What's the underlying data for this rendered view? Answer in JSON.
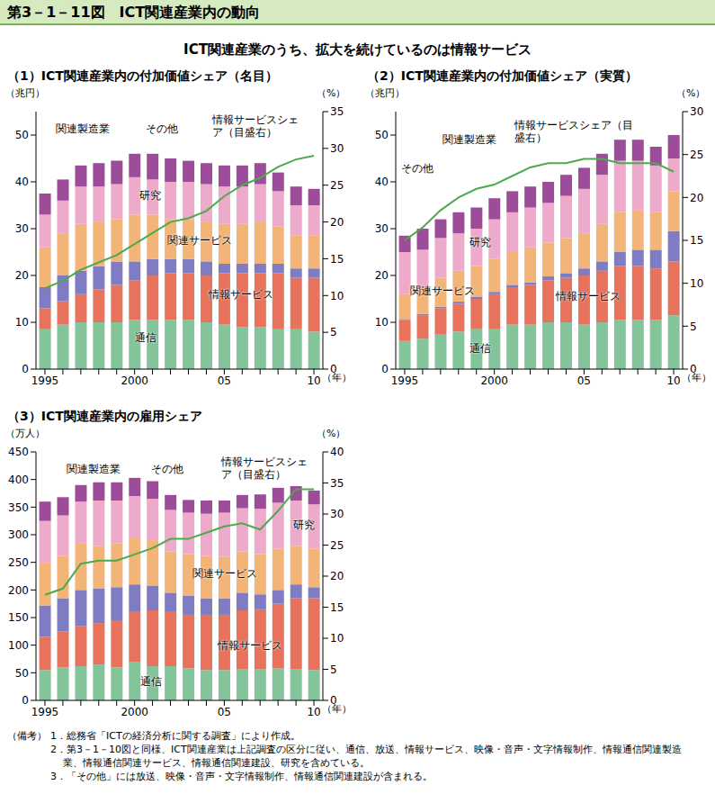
{
  "header": "第3－1－11図　ICT関連産業内の動向",
  "subtitle": "ICT関連産業のうち、拡大を続けているのは情報サービス",
  "chart_data": [
    {
      "type": "bar",
      "stacked": true,
      "title": "（1）ICT関連産業内の付加価値シェア（名目）",
      "y_label": "（兆円）",
      "y2_label": "（%）",
      "x_label": "（年）",
      "categories": [
        "1995",
        null,
        null,
        null,
        null,
        "2000",
        null,
        null,
        null,
        null,
        "05",
        null,
        null,
        null,
        null,
        "10"
      ],
      "ylim": [
        0,
        55
      ],
      "yticks": [
        0,
        10,
        20,
        30,
        40,
        50
      ],
      "y2lim": [
        0,
        35
      ],
      "y2ticks": [
        0,
        5,
        10,
        15,
        20,
        25,
        30,
        35
      ],
      "series": [
        {
          "name": "通信",
          "color": "#84c49a",
          "values": [
            8.5,
            9.5,
            10,
            10,
            10,
            10.5,
            10.5,
            10.5,
            10.5,
            10,
            9.5,
            9,
            9,
            8.5,
            8.5,
            8
          ]
        },
        {
          "name": "情報サービス",
          "color": "#e8735c",
          "values": [
            4.5,
            5,
            6,
            7,
            8,
            8.5,
            9.5,
            10,
            10,
            10,
            11,
            11.5,
            11.5,
            12,
            11,
            11.5
          ]
        },
        {
          "name": "関連製造業",
          "color": "#7f7cc4",
          "values": [
            4.5,
            5.5,
            5,
            5,
            5,
            4,
            3.5,
            3,
            3,
            3,
            2,
            2,
            2,
            2,
            2,
            2
          ]
        },
        {
          "name": "関連サービス",
          "color": "#f2b577",
          "values": [
            8.5,
            9,
            10,
            9.5,
            9,
            10,
            9.5,
            8.5,
            8.5,
            8.5,
            8.5,
            8.5,
            9,
            8,
            7,
            7
          ]
        },
        {
          "name": "研究",
          "color": "#eeaacb",
          "values": [
            7,
            7,
            8,
            7.5,
            7.5,
            8,
            7.5,
            8,
            8,
            8,
            8,
            8,
            8,
            7.5,
            6.5,
            6.5
          ]
        },
        {
          "name": "その他",
          "color": "#9c4c98",
          "values": [
            4.5,
            4.5,
            4.5,
            5,
            5,
            5,
            5.5,
            5,
            4.5,
            4.5,
            4.5,
            4.5,
            4.5,
            4,
            4,
            3.5
          ]
        },
        {
          "name": "情報サービスシェア（目盛右）",
          "color": "#4caa4c",
          "type": "line",
          "axis": "y2",
          "values": [
            11,
            12,
            13.5,
            14.5,
            15.5,
            17,
            18.5,
            20,
            20.5,
            21.5,
            23.5,
            25,
            26,
            27.5,
            28.5,
            29
          ]
        }
      ]
    },
    {
      "type": "bar",
      "stacked": true,
      "title": "（2）ICT関連産業内の付加価値シェア（実質）",
      "y_label": "（兆円）",
      "y2_label": "（%）",
      "x_label": "（年）",
      "categories": [
        "1995",
        null,
        null,
        null,
        null,
        "2000",
        null,
        null,
        null,
        null,
        "05",
        null,
        null,
        null,
        null,
        "10"
      ],
      "ylim": [
        0,
        55
      ],
      "yticks": [
        0,
        10,
        20,
        30,
        40,
        50
      ],
      "y2lim": [
        0,
        30
      ],
      "y2ticks": [
        0,
        5,
        10,
        15,
        20,
        25,
        30
      ],
      "series": [
        {
          "name": "通信",
          "color": "#84c49a",
          "values": [
            6,
            6.5,
            7.5,
            8,
            8.5,
            8.5,
            9.5,
            9.5,
            10,
            10,
            9.5,
            10,
            10.5,
            10.5,
            10.5,
            11.5
          ]
        },
        {
          "name": "情報サービス",
          "color": "#e8735c",
          "values": [
            4.5,
            5,
            5.5,
            6,
            6.5,
            7.5,
            8,
            8.5,
            9,
            9.5,
            10.5,
            11,
            11.5,
            11.5,
            11,
            11.5
          ]
        },
        {
          "name": "関連製造業",
          "color": "#7f7cc4",
          "values": [
            0.2,
            0.3,
            0.3,
            0.4,
            0.5,
            0.5,
            0.5,
            0.5,
            0.8,
            1,
            1.5,
            2,
            3,
            3.5,
            4,
            6.5
          ]
        },
        {
          "name": "関連サービス",
          "color": "#f2b577",
          "values": [
            5.3,
            5.7,
            6.2,
            6.6,
            6.5,
            7,
            7,
            7.5,
            7.2,
            7.5,
            7.5,
            8,
            8.5,
            8.5,
            8,
            8.5
          ]
        },
        {
          "name": "研究",
          "color": "#eeaacb",
          "values": [
            9,
            8,
            8.5,
            8,
            8,
            8.5,
            8.5,
            8.5,
            8.5,
            9,
            9.5,
            10.5,
            11,
            10.5,
            10,
            7
          ]
        },
        {
          "name": "その他",
          "color": "#9c4c98",
          "values": [
            3.5,
            4.5,
            4,
            4.5,
            4.5,
            4.5,
            4.5,
            4.5,
            4.5,
            4.5,
            4.5,
            4.5,
            4.5,
            4.5,
            4,
            5
          ]
        },
        {
          "name": "情報サービスシェア（目盛右）",
          "color": "#4caa4c",
          "type": "line",
          "axis": "y2",
          "values": [
            15,
            16.5,
            18.5,
            20,
            21,
            21.5,
            22.5,
            23.5,
            24,
            24,
            24.5,
            24.5,
            24,
            24,
            24,
            23
          ]
        }
      ]
    },
    {
      "type": "bar",
      "stacked": true,
      "title": "（3）ICT関連産業内の雇用シェア",
      "y_label": "（万人）",
      "y2_label": "（%）",
      "x_label": "（年）",
      "categories": [
        "1995",
        null,
        null,
        null,
        null,
        "2000",
        null,
        null,
        null,
        null,
        "05",
        null,
        null,
        null,
        null,
        "10"
      ],
      "ylim": [
        0,
        450
      ],
      "yticks": [
        0,
        50,
        100,
        150,
        200,
        250,
        300,
        350,
        400,
        450
      ],
      "y2lim": [
        0,
        40
      ],
      "y2ticks": [
        0,
        5,
        10,
        15,
        20,
        25,
        30,
        35,
        40
      ],
      "series": [
        {
          "name": "通信",
          "color": "#84c49a",
          "values": [
            55,
            60,
            62,
            65,
            60,
            70,
            62,
            62,
            58,
            55,
            55,
            57,
            57,
            58,
            57,
            55
          ]
        },
        {
          "name": "情報サービス",
          "color": "#e8735c",
          "values": [
            60,
            65,
            73,
            75,
            85,
            90,
            101,
            98,
            97,
            100,
            100,
            106,
            108,
            117,
            128,
            130
          ]
        },
        {
          "name": "関連製造業",
          "color": "#7f7cc4",
          "values": [
            57,
            60,
            65,
            63,
            60,
            50,
            45,
            35,
            35,
            30,
            30,
            32,
            27,
            25,
            25,
            20
          ]
        },
        {
          "name": "関連サービス",
          "color": "#f2b577",
          "values": [
            76,
            77,
            85,
            77,
            80,
            85,
            82,
            75,
            75,
            77,
            75,
            75,
            73,
            75,
            70,
            70
          ]
        },
        {
          "name": "研究",
          "color": "#eeaacb",
          "values": [
            77,
            73,
            75,
            82,
            77,
            75,
            75,
            75,
            75,
            76,
            80,
            78,
            82,
            83,
            82,
            80
          ]
        },
        {
          "name": "その他",
          "color": "#9c4c98",
          "values": [
            35,
            33,
            30,
            33,
            33,
            33,
            32,
            27,
            23,
            24,
            22,
            24,
            26,
            27,
            26,
            25
          ]
        },
        {
          "name": "情報サービスシェア（目盛右）",
          "color": "#4caa4c",
          "type": "line",
          "axis": "y2",
          "values": [
            17,
            18,
            22,
            22.5,
            22.5,
            23.5,
            24.5,
            26,
            26,
            27,
            28,
            28.5,
            27.5,
            30.5,
            34,
            34
          ]
        }
      ]
    }
  ],
  "notes_label": "（備考）",
  "notes": [
    "1．総務省「ICTの経済分析に関する調査」により作成。",
    "2．第3－1－10図と同様、ICT関連産業は上記調査の区分に従い、通信、放送、情報サービス、映像・音声・文字情報制作、情報通信関連製造業、情報通信関連サービス、情報通信関連建設、研究を含めている。",
    "3．「その他」には放送、映像・音声・文字情報制作、情報通信関連建設が含まれる。"
  ]
}
